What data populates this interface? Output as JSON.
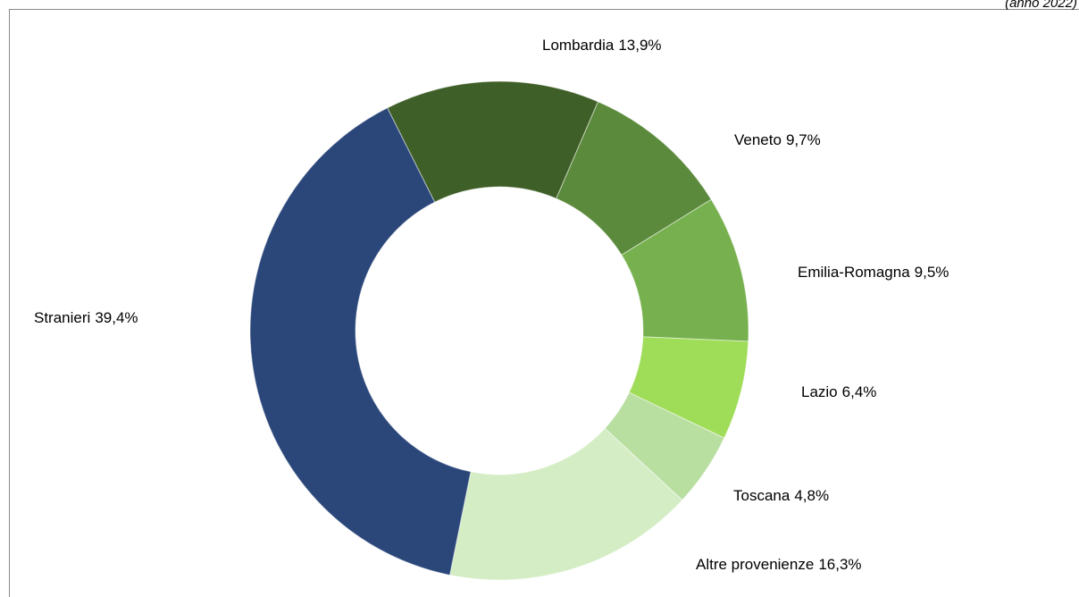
{
  "chart_data": {
    "type": "donut",
    "subtitle": "(anno 2022)",
    "categories": [
      "Lombardia",
      "Veneto",
      "Emilia-Romagna",
      "Lazio",
      "Toscana",
      "Altre provenienze",
      "Stranieri"
    ],
    "values": [
      13.9,
      9.7,
      9.5,
      6.4,
      4.8,
      16.3,
      39.4
    ],
    "value_labels": [
      "13,9%",
      "9,7%",
      "9,5%",
      "6,4%",
      "4,8%",
      "16,3%",
      "39,4%"
    ],
    "colors": [
      "#3f5f28",
      "#5b8a3c",
      "#77b04f",
      "#9fdc58",
      "#b8dea0",
      "#d4edc4",
      "#2b477a"
    ]
  }
}
